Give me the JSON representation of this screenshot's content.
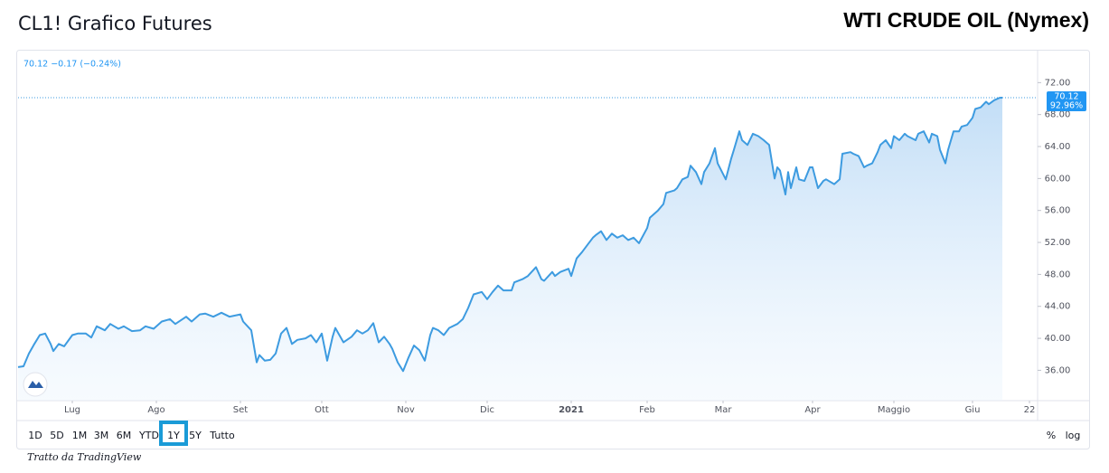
{
  "page_title": "CL1! Grafico Futures",
  "instrument_title": "WTI CRUDE OIL (Nymex)",
  "credit": "Tratto da TradingView",
  "range_buttons": [
    "1D",
    "5D",
    "1M",
    "3M",
    "6M",
    "YTD",
    "1Y",
    "5Y",
    "Tutto"
  ],
  "selected_range": "1Y",
  "scale_buttons": [
    "%",
    "log"
  ],
  "chart_data": {
    "type": "area",
    "quote_legend": "70.12 −0.17 (−0.24%)",
    "last_price_label": "70.12",
    "last_change_label": "92.96%",
    "color": "#3d9be0",
    "grid": false,
    "xlim": [
      0,
      376
    ],
    "ylim": [
      32.2,
      76
    ],
    "yticks": [
      {
        "value": 36,
        "label": "36.00"
      },
      {
        "value": 40,
        "label": "40.00"
      },
      {
        "value": 44,
        "label": "44.00"
      },
      {
        "value": 48,
        "label": "48.00"
      },
      {
        "value": 52,
        "label": "52.00"
      },
      {
        "value": 56,
        "label": "56.00"
      },
      {
        "value": 60,
        "label": "60.00"
      },
      {
        "value": 64,
        "label": "64.00"
      },
      {
        "value": 68,
        "label": "68.00"
      },
      {
        "value": 72,
        "label": "72.00"
      }
    ],
    "xticks": [
      {
        "value": 20,
        "label": "Lug"
      },
      {
        "value": 51,
        "label": "Ago"
      },
      {
        "value": 82,
        "label": "Set"
      },
      {
        "value": 112,
        "label": "Ott"
      },
      {
        "value": 143,
        "label": "Nov"
      },
      {
        "value": 173,
        "label": "Dic"
      },
      {
        "value": 204,
        "label": "2021"
      },
      {
        "value": 232,
        "label": "Feb"
      },
      {
        "value": 260,
        "label": "Mar"
      },
      {
        "value": 293,
        "label": "Apr"
      },
      {
        "value": 323,
        "label": "Maggio"
      },
      {
        "value": 352,
        "label": "Giu"
      },
      {
        "value": 373,
        "label": "22"
      }
    ],
    "x": [
      0,
      2,
      4,
      6,
      8,
      10,
      12,
      13,
      15,
      17,
      20,
      22,
      25,
      27,
      29,
      32,
      34,
      37,
      39,
      42,
      45,
      47,
      50,
      53,
      56,
      58,
      62,
      64,
      67,
      69,
      72,
      75,
      78,
      82,
      83,
      86,
      88,
      89,
      91,
      93,
      95,
      97,
      99,
      101,
      103,
      106,
      108,
      110,
      112,
      114,
      116,
      117,
      120,
      123,
      125,
      127,
      129,
      131,
      133,
      135,
      137,
      138,
      140,
      142,
      144,
      146,
      148,
      150,
      152,
      153,
      155,
      157,
      159,
      162,
      164,
      166,
      168,
      171,
      173,
      175,
      177,
      179,
      182,
      183,
      186,
      188,
      191,
      193,
      194,
      197,
      198,
      200,
      203,
      204,
      206,
      208,
      210,
      212,
      213,
      215,
      217,
      219,
      221,
      223,
      225,
      227,
      229,
      232,
      233,
      236,
      238,
      239,
      242,
      243,
      245,
      247,
      248,
      250,
      252,
      253,
      255,
      257,
      258,
      261,
      263,
      264,
      266,
      267,
      269,
      271,
      273,
      275,
      277,
      279,
      280,
      281,
      283,
      284,
      285,
      287,
      288,
      290,
      292,
      293,
      295,
      297,
      298,
      301,
      303,
      304,
      307,
      308,
      310,
      312,
      313,
      315,
      317,
      318,
      320,
      322,
      323,
      325,
      327,
      328,
      331,
      332,
      334,
      336,
      337,
      339,
      340,
      342,
      343,
      345,
      347,
      348,
      350,
      352,
      353,
      355,
      357,
      358,
      360,
      362,
      363
    ],
    "values": [
      36.4,
      36.5,
      38.1,
      39.3,
      40.4,
      40.6,
      39.3,
      38.4,
      39.3,
      39.0,
      40.4,
      40.6,
      40.6,
      40.1,
      41.5,
      41.0,
      41.8,
      41.2,
      41.5,
      40.9,
      41.0,
      41.5,
      41.2,
      42.1,
      42.4,
      41.8,
      42.7,
      42.1,
      43.0,
      43.1,
      42.7,
      43.2,
      42.7,
      43.0,
      42.1,
      41.0,
      37.0,
      37.9,
      37.2,
      37.3,
      38.1,
      40.6,
      41.3,
      39.3,
      39.8,
      40.0,
      40.4,
      39.5,
      40.6,
      37.2,
      40.2,
      41.3,
      39.5,
      40.2,
      41.0,
      40.6,
      41.0,
      41.9,
      39.5,
      40.2,
      39.3,
      38.7,
      37.0,
      35.9,
      37.6,
      39.1,
      38.5,
      37.2,
      40.4,
      41.3,
      41.0,
      40.4,
      41.3,
      41.8,
      42.4,
      43.8,
      45.5,
      45.8,
      44.9,
      45.8,
      46.6,
      46.0,
      46.0,
      47.0,
      47.4,
      47.8,
      48.9,
      47.4,
      47.2,
      48.3,
      47.8,
      48.3,
      48.7,
      47.8,
      50.0,
      50.8,
      51.7,
      52.6,
      52.9,
      53.4,
      52.3,
      53.1,
      52.6,
      52.9,
      52.3,
      52.6,
      51.9,
      53.8,
      55.1,
      56.0,
      56.8,
      58.2,
      58.5,
      58.8,
      59.9,
      60.2,
      61.6,
      60.8,
      59.3,
      60.8,
      61.9,
      63.8,
      61.9,
      59.9,
      62.5,
      63.6,
      65.9,
      64.8,
      64.2,
      65.6,
      65.3,
      64.8,
      64.2,
      60.0,
      61.4,
      61.0,
      58.0,
      60.8,
      58.8,
      61.4,
      59.9,
      59.7,
      61.4,
      61.4,
      58.8,
      59.7,
      59.9,
      59.3,
      59.9,
      63.1,
      63.3,
      63.1,
      62.8,
      61.4,
      61.6,
      61.9,
      63.3,
      64.2,
      64.8,
      63.8,
      65.3,
      64.8,
      65.6,
      65.3,
      64.8,
      65.6,
      65.9,
      64.5,
      65.6,
      65.3,
      63.6,
      61.9,
      63.6,
      65.9,
      65.9,
      66.5,
      66.7,
      67.6,
      68.7,
      68.9,
      69.6,
      69.3,
      69.8,
      70.1,
      70.12
    ]
  }
}
